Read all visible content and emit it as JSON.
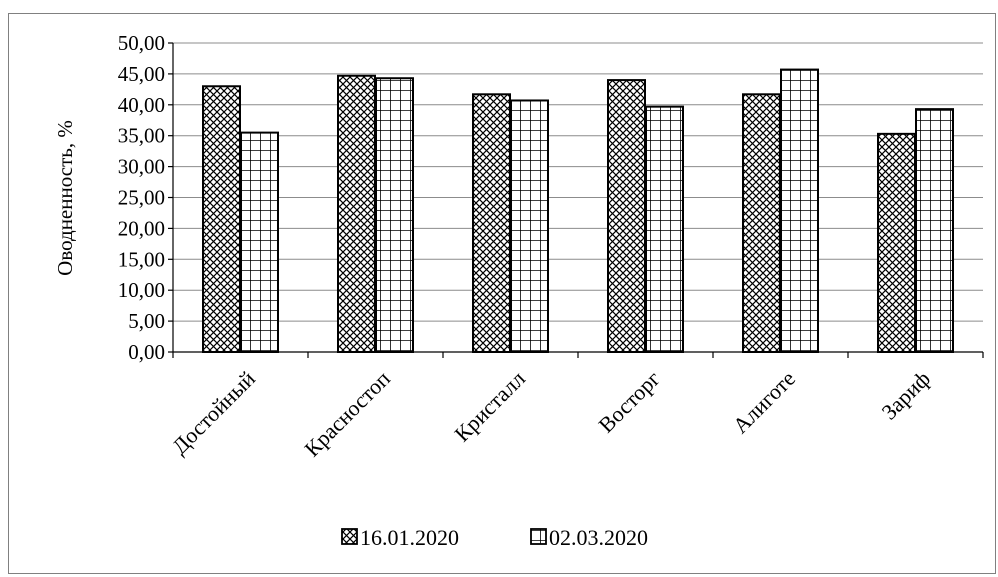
{
  "chart_data": {
    "type": "bar",
    "title": "",
    "xlabel": "",
    "ylabel": "Оводненность, %",
    "ylim": [
      0,
      50
    ],
    "yticks": [
      "0,00",
      "5,00",
      "10,00",
      "15,00",
      "20,00",
      "25,00",
      "30,00",
      "35,00",
      "40,00",
      "45,00",
      "50,00"
    ],
    "ytick_step": 5,
    "grid": true,
    "legend_position": "bottom",
    "categories": [
      "Достойный",
      "Красностоп",
      "Кристалл",
      "Восторг",
      "Алиготе",
      "Зариф"
    ],
    "series": [
      {
        "name": "16.01.2020",
        "pattern": "diamond-hatch",
        "color": "#000000",
        "values": [
          43.0,
          44.7,
          41.7,
          44.0,
          41.7,
          35.3
        ]
      },
      {
        "name": "02.03.2020",
        "pattern": "square-grid",
        "color": "#000000",
        "values": [
          35.5,
          44.3,
          40.7,
          39.7,
          45.7,
          39.3
        ]
      }
    ]
  }
}
